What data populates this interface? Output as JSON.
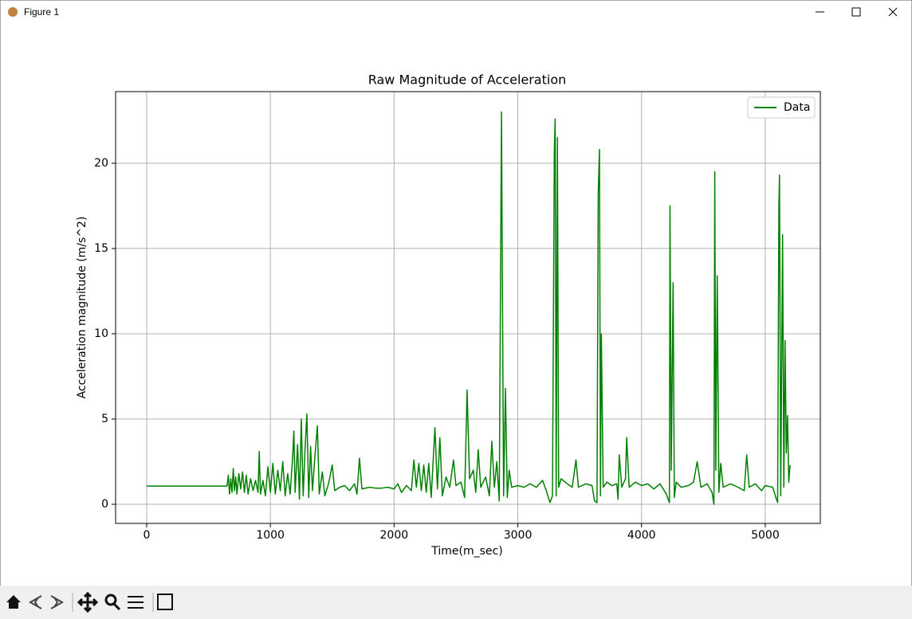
{
  "window": {
    "title": "Figure 1"
  },
  "chart_data": {
    "type": "line",
    "title": "Raw Magnitude of Acceleration",
    "xlabel": "Time(m_sec)",
    "ylabel": "Acceleration magnitude (m/s^2)",
    "xlim": [
      -251,
      5445
    ],
    "ylim": [
      -1.12,
      24.2
    ],
    "xticks": [
      0,
      1000,
      2000,
      3000,
      4000,
      5000
    ],
    "yticks": [
      0,
      5,
      10,
      15,
      20
    ],
    "grid": true,
    "legend": "upper right",
    "x": [
      0,
      650,
      660,
      670,
      680,
      690,
      700,
      710,
      720,
      730,
      745,
      760,
      775,
      790,
      805,
      820,
      840,
      860,
      880,
      900,
      910,
      920,
      940,
      960,
      980,
      1000,
      1020,
      1040,
      1060,
      1080,
      1100,
      1120,
      1140,
      1160,
      1180,
      1190,
      1200,
      1220,
      1235,
      1250,
      1265,
      1280,
      1295,
      1310,
      1325,
      1340,
      1360,
      1380,
      1395,
      1420,
      1440,
      1470,
      1500,
      1520,
      1560,
      1600,
      1640,
      1680,
      1700,
      1720,
      1740,
      1800,
      1850,
      1900,
      1950,
      2000,
      2030,
      2060,
      2100,
      2140,
      2160,
      2180,
      2200,
      2220,
      2240,
      2260,
      2280,
      2300,
      2330,
      2350,
      2370,
      2390,
      2420,
      2450,
      2480,
      2500,
      2540,
      2570,
      2590,
      2610,
      2640,
      2660,
      2680,
      2700,
      2740,
      2770,
      2790,
      2810,
      2830,
      2850,
      2868,
      2875,
      2885,
      2900,
      2915,
      2930,
      2950,
      3000,
      3050,
      3100,
      3150,
      3200,
      3230,
      3260,
      3280,
      3295,
      3302,
      3310,
      3320,
      3330,
      3350,
      3400,
      3440,
      3470,
      3490,
      3550,
      3600,
      3620,
      3640,
      3650,
      3660,
      3668,
      3675,
      3690,
      3720,
      3760,
      3800,
      3810,
      3820,
      3840,
      3870,
      3880,
      3900,
      3950,
      4000,
      4050,
      4100,
      4150,
      4200,
      4225,
      4230,
      4240,
      4255,
      4265,
      4280,
      4320,
      4380,
      4420,
      4450,
      4480,
      4530,
      4570,
      4585,
      4592,
      4600,
      4612,
      4625,
      4640,
      4660,
      4720,
      4780,
      4830,
      4850,
      4870,
      4920,
      4970,
      5000,
      5060,
      5090,
      5100,
      5110,
      5115,
      5125,
      5140,
      5150,
      5160,
      5170,
      5180,
      5190,
      5200
    ],
    "series": [
      {
        "name": "Data",
        "color": "#008000",
        "values": [
          1.07,
          1.07,
          1.7,
          0.6,
          1.5,
          0.7,
          2.1,
          0.8,
          1.6,
          0.6,
          1.8,
          0.9,
          1.9,
          0.7,
          1.7,
          0.6,
          1.5,
          0.8,
          1.4,
          0.7,
          3.1,
          0.6,
          1.4,
          0.5,
          2.2,
          0.7,
          2.4,
          0.6,
          2.0,
          0.8,
          2.5,
          0.5,
          1.8,
          0.6,
          2.8,
          4.3,
          0.7,
          3.5,
          0.3,
          5.0,
          0.5,
          3.2,
          5.3,
          0.4,
          3.4,
          0.8,
          2.8,
          4.6,
          0.6,
          1.9,
          0.5,
          1.2,
          2.3,
          0.8,
          1.0,
          1.1,
          0.8,
          1.2,
          0.6,
          2.7,
          0.9,
          1.0,
          0.95,
          0.95,
          1.0,
          0.9,
          1.2,
          0.7,
          1.1,
          0.8,
          2.6,
          1.0,
          2.4,
          0.8,
          2.3,
          0.7,
          2.4,
          0.4,
          4.5,
          0.9,
          3.9,
          0.5,
          1.6,
          1.0,
          2.6,
          1.1,
          1.3,
          0.4,
          6.7,
          1.5,
          2.0,
          0.7,
          3.2,
          1.0,
          1.6,
          0.5,
          3.7,
          1.0,
          2.5,
          0.2,
          23.0,
          13.5,
          0.5,
          6.8,
          0.4,
          2.0,
          1.0,
          1.1,
          1.0,
          1.2,
          1.0,
          1.4,
          0.8,
          0.1,
          0.5,
          20.6,
          22.6,
          0.5,
          21.5,
          1.0,
          1.5,
          1.2,
          1.0,
          2.6,
          1.0,
          1.2,
          1.1,
          0.2,
          0.1,
          18.3,
          20.8,
          0.5,
          10.0,
          1.0,
          1.3,
          1.1,
          1.2,
          0.3,
          2.9,
          1.0,
          1.5,
          3.9,
          1.0,
          1.3,
          1.1,
          1.2,
          0.9,
          1.2,
          0.6,
          0.1,
          17.5,
          2.0,
          13.0,
          0.4,
          1.3,
          1.0,
          1.1,
          1.3,
          2.5,
          1.0,
          1.2,
          0.7,
          0.0,
          19.5,
          2.0,
          13.4,
          0.7,
          2.4,
          1.0,
          1.2,
          1.0,
          0.8,
          2.9,
          1.0,
          1.2,
          0.8,
          1.1,
          1.0,
          0.3,
          0.1,
          17.5,
          19.3,
          0.5,
          15.8,
          1.0,
          9.6,
          3.0,
          5.2,
          1.3,
          2.3
        ]
      }
    ]
  }
}
